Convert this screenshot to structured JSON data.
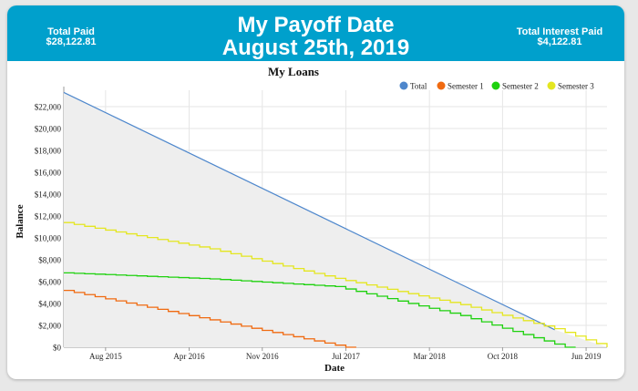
{
  "header": {
    "total_paid_label": "Total Paid",
    "total_paid_value": "$28,122.81",
    "title_line1": "My Payoff Date",
    "title_line2": "August 25th, 2019",
    "interest_label": "Total Interest Paid",
    "interest_value": "$4,122.81"
  },
  "colors": {
    "header_bg": "#00a0cc",
    "total": "#4e87cc",
    "semester1": "#f06a10",
    "semester2": "#1ed10e",
    "semester3": "#e4e620",
    "total_fill": "#eeeeee"
  },
  "chart_data": {
    "type": "line",
    "title": "My Loans",
    "xlabel": "Date",
    "ylabel": "Balance",
    "x_range": [
      "2015-04",
      "2019-08"
    ],
    "ylim": [
      0,
      23500
    ],
    "y_ticks": [
      "$0",
      "$2,000",
      "$4,000",
      "$6,000",
      "$8,000",
      "$10,000",
      "$12,000",
      "$14,000",
      "$16,000",
      "$18,000",
      "$20,000",
      "$22,000"
    ],
    "x_ticks": [
      "Aug 2015",
      "Apr 2016",
      "Nov 2016",
      "Jul 2017",
      "Mar 2018",
      "Oct 2018",
      "Jun 2019"
    ],
    "legend": [
      "Total",
      "Semester 1",
      "Semester 2",
      "Semester 3"
    ],
    "legend_position": "top-right",
    "grid": true,
    "series": [
      {
        "name": "Total",
        "x": [
          "2015-04",
          "2019-03"
        ],
        "values": [
          23300,
          1600
        ]
      },
      {
        "name": "Semester 1",
        "x": [
          "2015-04",
          "2017-07"
        ],
        "values": [
          5200,
          0
        ]
      },
      {
        "name": "Semester 2",
        "x": [
          "2015-04",
          "2016-06",
          "2017-06",
          "2018-06",
          "2019-04"
        ],
        "values": [
          6800,
          6250,
          5550,
          2900,
          0
        ]
      },
      {
        "name": "Semester 3",
        "x": [
          "2015-04",
          "2016-06",
          "2017-06",
          "2018-06",
          "2019-03",
          "2019-08"
        ],
        "values": [
          11400,
          9000,
          6300,
          3900,
          1700,
          0
        ]
      }
    ]
  }
}
